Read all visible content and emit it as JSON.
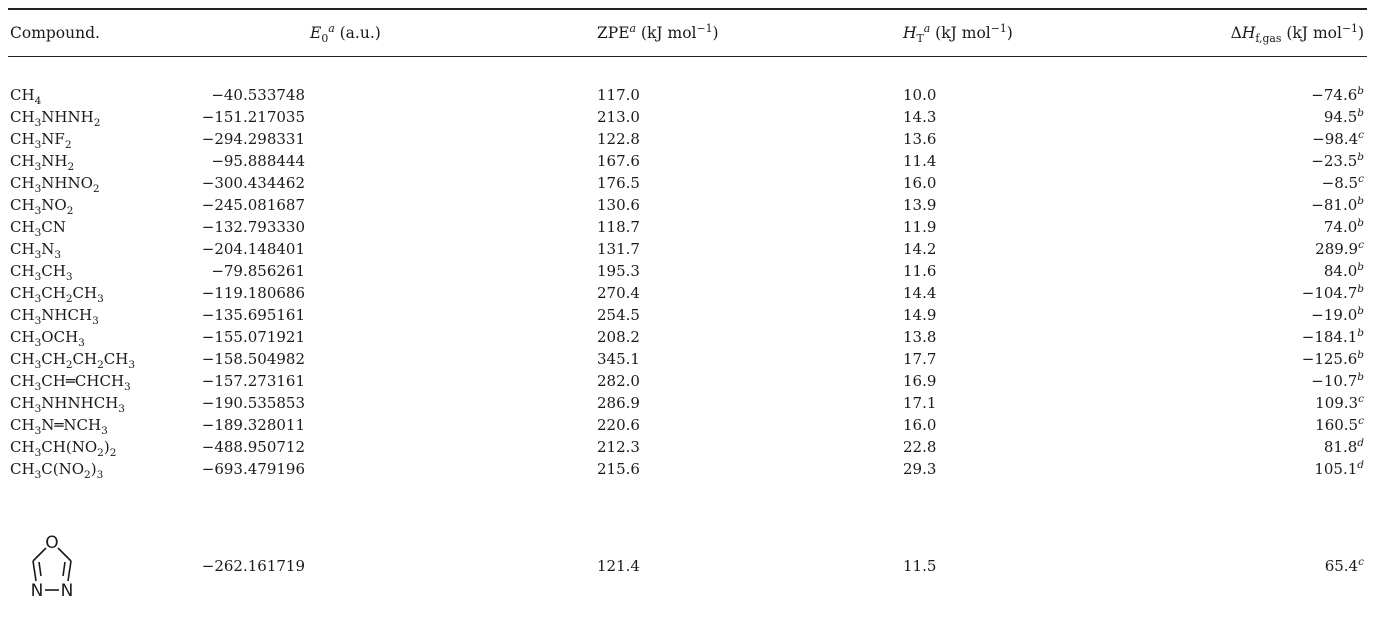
{
  "headers": {
    "compound": "Compound.",
    "e0": "E0a (a.u.)",
    "zpe": "ZPEa (kJ mol−1)",
    "ht": "HTa (kJ mol−1)",
    "dhf": "ΔHf,gas (kJ mol−1)"
  },
  "rows": [
    {
      "compound": "CH4",
      "e0": "−40.533748",
      "zpe": "117.0",
      "ht": "10.0",
      "dhf": "−74.6",
      "note": "b"
    },
    {
      "compound": "CH3NHNH2",
      "e0": "−151.217035",
      "zpe": "213.0",
      "ht": "14.3",
      "dhf": "94.5",
      "note": "b"
    },
    {
      "compound": "CH3NF2",
      "e0": "−294.298331",
      "zpe": "122.8",
      "ht": "13.6",
      "dhf": "−98.4",
      "note": "c"
    },
    {
      "compound": "CH3NH2",
      "e0": "−95.888444",
      "zpe": "167.6",
      "ht": "11.4",
      "dhf": "−23.5",
      "note": "b"
    },
    {
      "compound": "CH3NHNO2",
      "e0": "−300.434462",
      "zpe": "176.5",
      "ht": "16.0",
      "dhf": "−8.5",
      "note": "c"
    },
    {
      "compound": "CH3NO2",
      "e0": "−245.081687",
      "zpe": "130.6",
      "ht": "13.9",
      "dhf": "−81.0",
      "note": "b"
    },
    {
      "compound": "CH3CN",
      "e0": "−132.793330",
      "zpe": "118.7",
      "ht": "11.9",
      "dhf": "74.0",
      "note": "b"
    },
    {
      "compound": "CH3N3",
      "e0": "−204.148401",
      "zpe": "131.7",
      "ht": "14.2",
      "dhf": "289.9",
      "note": "c"
    },
    {
      "compound": "CH3CH3",
      "e0": "−79.856261",
      "zpe": "195.3",
      "ht": "11.6",
      "dhf": "84.0",
      "note": "b"
    },
    {
      "compound": "CH3CH2CH3",
      "e0": "−119.180686",
      "zpe": "270.4",
      "ht": "14.4",
      "dhf": "−104.7",
      "note": "b"
    },
    {
      "compound": "CH3NHCH3",
      "e0": "−135.695161",
      "zpe": "254.5",
      "ht": "14.9",
      "dhf": "−19.0",
      "note": "b"
    },
    {
      "compound": "CH3OCH3",
      "e0": "−155.071921",
      "zpe": "208.2",
      "ht": "13.8",
      "dhf": "−184.1",
      "note": "b"
    },
    {
      "compound": "CH3CH2CH2CH3",
      "e0": "−158.504982",
      "zpe": "345.1",
      "ht": "17.7",
      "dhf": "−125.6",
      "note": "b"
    },
    {
      "compound": "CH3CH═CHCH3",
      "e0": "−157.273161",
      "zpe": "282.0",
      "ht": "16.9",
      "dhf": "−10.7",
      "note": "b"
    },
    {
      "compound": "CH3NHNHCH3",
      "e0": "−190.535853",
      "zpe": "286.9",
      "ht": "17.1",
      "dhf": "109.3",
      "note": "c"
    },
    {
      "compound": "CH3N═NCH3",
      "e0": "−189.328011",
      "zpe": "220.6",
      "ht": "16.0",
      "dhf": "160.5",
      "note": "c"
    },
    {
      "compound": "CH3CH(NO2)2",
      "e0": "−488.950712",
      "zpe": "212.3",
      "ht": "22.8",
      "dhf": "81.8",
      "note": "d"
    },
    {
      "compound": "CH3C(NO2)3",
      "e0": "−693.479196",
      "zpe": "215.6",
      "ht": "29.3",
      "dhf": "105.1",
      "note": "d"
    },
    {
      "compound": "",
      "e0": "−262.161719",
      "zpe": "121.4",
      "ht": "11.5",
      "dhf": "65.4",
      "note": "c",
      "structure_icon": "oxadiazole-structure-icon",
      "structure_atoms": [
        "O",
        "N",
        "N"
      ]
    }
  ]
}
